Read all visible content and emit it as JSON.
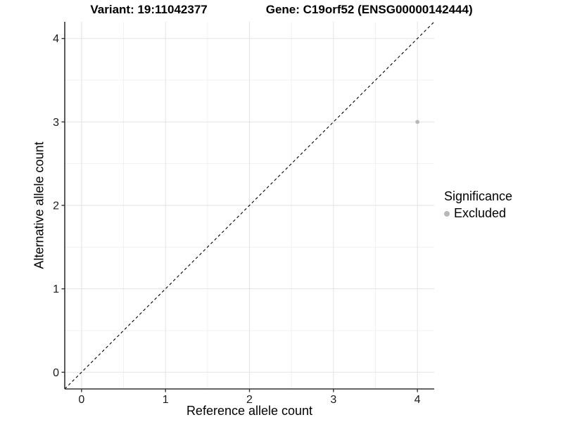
{
  "title": {
    "variant": "Variant: 19:11042377",
    "gene": "Gene: C19orf52 (ENSG00000142444)"
  },
  "chart_data": {
    "type": "scatter",
    "xlabel": "Reference allele count",
    "ylabel": "Alternative allele count",
    "xlim": [
      -0.2,
      4.2
    ],
    "ylim": [
      -0.2,
      4.2
    ],
    "x_ticks": [
      0,
      1,
      2,
      3,
      4
    ],
    "y_ticks": [
      0,
      1,
      2,
      3,
      4
    ],
    "x_minor_ticks": [
      0.5,
      1.5,
      2.5,
      3.5
    ],
    "y_minor_ticks": [
      0.5,
      1.5,
      2.5,
      3.5
    ],
    "grid": true,
    "identity_line": {
      "style": "dashed",
      "color": "#000000",
      "from": [
        -0.2,
        -0.2
      ],
      "to": [
        4.2,
        4.2
      ]
    },
    "series": [
      {
        "name": "Excluded",
        "color": "#b8b8b8",
        "points": [
          {
            "x": 4,
            "y": 3
          }
        ]
      }
    ],
    "legend": {
      "title": "Significance",
      "position": "right",
      "entries": [
        {
          "label": "Excluded",
          "color": "#b8b8b8"
        }
      ]
    }
  },
  "colors": {
    "background": "#ffffff",
    "grid_major": "#e3e3e3",
    "grid_minor": "#f1f1f1",
    "axis_line": "#333333",
    "tick_mark": "#333333",
    "tick_label": "#1a1a1a",
    "text": "#000000",
    "point": "#b8b8b8"
  }
}
